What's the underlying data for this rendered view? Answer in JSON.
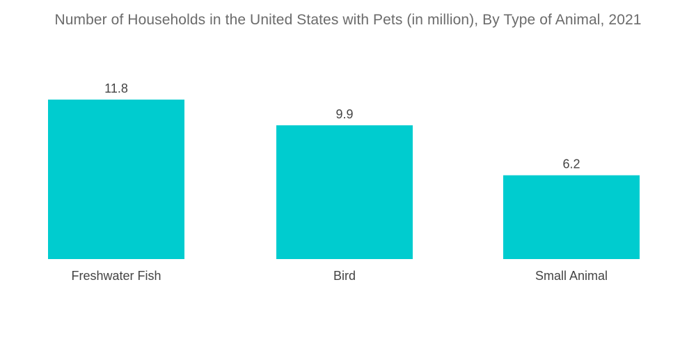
{
  "chart_data": {
    "type": "bar",
    "title": "Number of Households in the United States with Pets (in million), By Type of Animal, 2021",
    "categories": [
      "Freshwater Fish",
      "Bird",
      "Small Animal"
    ],
    "values": [
      11.8,
      9.9,
      6.2
    ],
    "value_labels": [
      "11.8",
      "9.9",
      "6.2"
    ],
    "xlabel": "",
    "ylabel": "",
    "ylim": [
      0,
      11.8
    ],
    "grid": false,
    "legend": "none"
  },
  "colors": {
    "bar": "#00cccf",
    "title": "#6b6b6b",
    "label": "#444444"
  }
}
